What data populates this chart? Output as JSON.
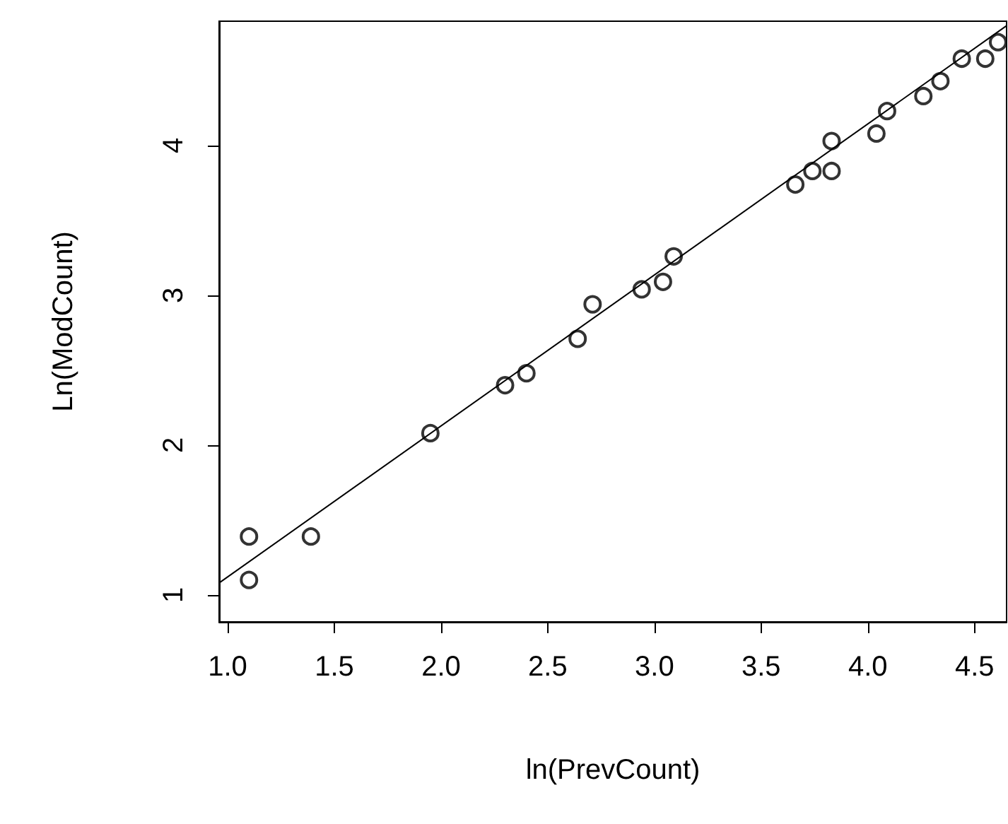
{
  "chart_data": {
    "type": "scatter",
    "xlabel": "ln(PrevCount)",
    "ylabel": "Ln(ModCount)",
    "xlim": [
      0.96,
      4.65
    ],
    "ylim": [
      0.82,
      4.83
    ],
    "xticks": [
      {
        "value": 1,
        "label": "1.0"
      },
      {
        "value": 1.5,
        "label": "1.5"
      },
      {
        "value": 2,
        "label": "2.0"
      },
      {
        "value": 2.5,
        "label": "2.5"
      },
      {
        "value": 3,
        "label": "3.0"
      },
      {
        "value": 3.5,
        "label": "3.5"
      },
      {
        "value": 4,
        "label": "4.0"
      },
      {
        "value": 4.5,
        "label": "4.5"
      }
    ],
    "yticks": [
      1,
      2,
      3,
      4
    ],
    "grid": false,
    "marker": "circle",
    "series": [
      {
        "color": "#000000",
        "x": [
          1.1,
          1.1,
          1.39,
          1.95,
          2.3,
          2.4,
          2.64,
          2.71,
          2.94,
          3.04,
          3.09,
          3.66,
          3.74,
          3.83,
          3.83,
          4.04,
          4.09,
          4.26,
          4.34,
          4.44,
          4.55,
          4.61
        ],
        "values": [
          1.1,
          1.39,
          1.39,
          2.08,
          2.4,
          2.48,
          2.71,
          2.94,
          3.04,
          3.09,
          3.26,
          3.74,
          3.83,
          3.83,
          4.03,
          4.08,
          4.23,
          4.33,
          4.43,
          4.58,
          4.58,
          4.69
        ]
      },
      {
        "type": "line",
        "color": "#000000",
        "marker": "none",
        "line_style": "solid",
        "x": [
          0.96,
          4.65
        ],
        "values": [
          1.08,
          4.8
        ]
      }
    ]
  }
}
